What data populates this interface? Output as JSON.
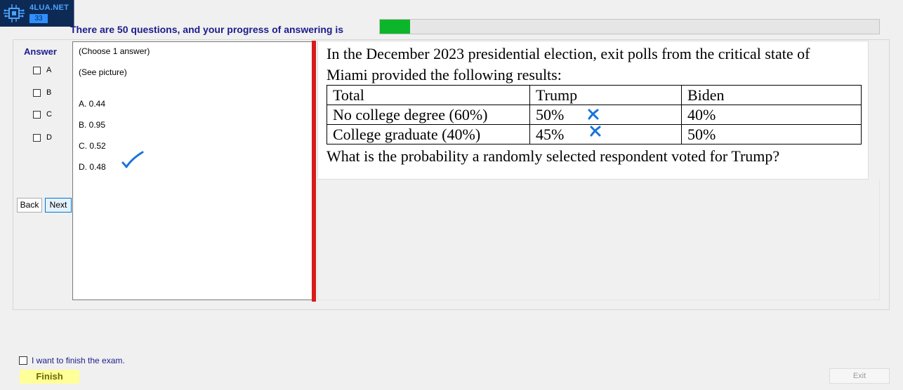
{
  "logo": {
    "brand": "4LUA.NET",
    "number": "33",
    "icon": "circuit-chip-icon"
  },
  "progress": {
    "text": "There are 50 questions, and your progress of answering is",
    "fraction": 0.06,
    "color": "#0db52a"
  },
  "answer_panel": {
    "heading": "Answer",
    "options": [
      {
        "label": "A",
        "checked": false
      },
      {
        "label": "B",
        "checked": false
      },
      {
        "label": "C",
        "checked": false
      },
      {
        "label": "D",
        "checked": false
      }
    ]
  },
  "nav": {
    "back_label": "Back",
    "next_label": "Next"
  },
  "answers_text": {
    "instruction": "(Choose 1 answer)",
    "see_picture": "(See picture)",
    "choices": [
      "A. 0.44",
      "B. 0.95",
      "C. 0.52",
      "D. 0.48"
    ]
  },
  "question": {
    "line1": "In the December 2023 presidential election, exit polls from the critical state of",
    "line2": "Miami provided the following results:",
    "table": {
      "header": [
        "Total",
        "Trump",
        "Biden"
      ],
      "rows": [
        [
          "No college degree (60%)",
          "50%",
          "40%"
        ],
        [
          "College graduate (40%)",
          "45%",
          "50%"
        ]
      ]
    },
    "prompt": "What is the probability a randomly selected respondent voted for Trump?"
  },
  "footer": {
    "finish_checkbox_label": "I want to finish the exam.",
    "finish_label": "Finish",
    "exit_label": "Exit"
  },
  "colors": {
    "accent_text": "#1c1c8c",
    "divider": "#d81b1b",
    "annotation": "#1a73d9"
  }
}
